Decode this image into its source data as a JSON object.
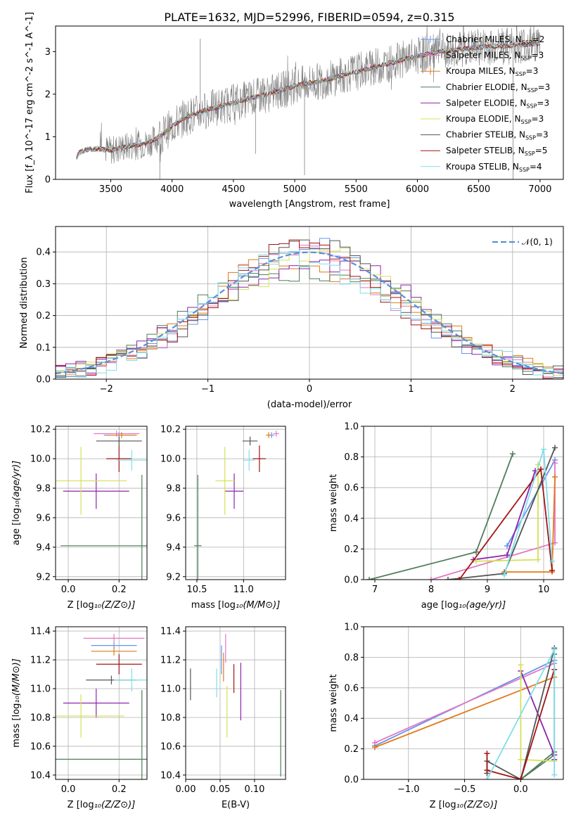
{
  "figure_title": "PLATE=1632, MJD=52996, FIBERID=0594, z=0.315",
  "colors": {
    "Chabrier MILES": "#6495ed",
    "Salpeter MILES": "#e377c2",
    "Kroupa MILES": "#e07b1a",
    "Chabrier ELODIE": "#4e7d5a",
    "Salpeter ELODIE": "#8e24aa",
    "Kroupa ELODIE": "#d4e157",
    "Chabrier STELIB": "#555555",
    "Salpeter STELIB": "#a31515",
    "Kroupa STELIB": "#80deea",
    "data": "#808080",
    "normal": "#5b8fd9",
    "grid": "#b0b0b0"
  },
  "chart_data": [
    {
      "id": "spectrum",
      "type": "line",
      "xlabel": "wavelength [Angstrom, rest frame]",
      "ylabel": "Flux [f_λ 10^-17 erg cm^-2 s^-1 A^-1]",
      "xlim": [
        3050,
        7190
      ],
      "ylim": [
        0,
        3.6
      ],
      "xticks": [
        3500,
        4000,
        4500,
        5000,
        5500,
        6000,
        6500,
        7000
      ],
      "yticks": [
        0,
        1,
        2,
        3
      ],
      "grid": false,
      "legend_position": "upper right",
      "legend": [
        {
          "model": "Chabrier MILES",
          "label": "Chabrier MILES, N",
          "sub": "SSP",
          "suffix": "=2"
        },
        {
          "model": "Salpeter MILES",
          "label": "Salpeter MILES, N",
          "sub": "SSP",
          "suffix": "=3"
        },
        {
          "model": "Kroupa MILES",
          "label": "Kroupa MILES, N",
          "sub": "SSP",
          "suffix": "=3"
        },
        {
          "model": "Chabrier ELODIE",
          "label": "Chabrier ELODIE, N",
          "sub": "SSP",
          "suffix": "=3"
        },
        {
          "model": "Salpeter ELODIE",
          "label": "Salpeter ELODIE, N",
          "sub": "SSP",
          "suffix": "=3"
        },
        {
          "model": "Kroupa ELODIE",
          "label": "Kroupa ELODIE, N",
          "sub": "SSP",
          "suffix": "=3"
        },
        {
          "model": "Chabrier STELIB",
          "label": "Chabrier STELIB, N",
          "sub": "SSP",
          "suffix": "=3"
        },
        {
          "model": "Salpeter STELIB",
          "label": "Salpeter STELIB, N",
          "sub": "SSP",
          "suffix": "=5"
        },
        {
          "model": "Kroupa STELIB",
          "label": "Kroupa STELIB, N",
          "sub": "SSP",
          "suffix": "=4"
        }
      ],
      "continuum": [
        [
          3220,
          0.5
        ],
        [
          3240,
          0.62
        ],
        [
          3300,
          0.7
        ],
        [
          3400,
          0.72
        ],
        [
          3500,
          0.68
        ],
        [
          3600,
          0.75
        ],
        [
          3700,
          0.8
        ],
        [
          3800,
          0.85
        ],
        [
          3900,
          1.0
        ],
        [
          4000,
          1.25
        ],
        [
          4100,
          1.45
        ],
        [
          4200,
          1.55
        ],
        [
          4300,
          1.65
        ],
        [
          4400,
          1.72
        ],
        [
          4500,
          1.8
        ],
        [
          4700,
          1.95
        ],
        [
          4900,
          2.1
        ],
        [
          5000,
          2.2
        ],
        [
          5200,
          2.3
        ],
        [
          5400,
          2.45
        ],
        [
          5600,
          2.6
        ],
        [
          5800,
          2.75
        ],
        [
          6000,
          2.9
        ],
        [
          6200,
          3.0
        ],
        [
          6500,
          3.1
        ],
        [
          6800,
          3.15
        ],
        [
          7000,
          3.2
        ]
      ]
    },
    {
      "id": "residuals",
      "type": "histogram",
      "xlabel": "(data-model)/error",
      "ylabel": "Normed distribution",
      "xlim": [
        -2.5,
        2.5
      ],
      "ylim": [
        0,
        0.48
      ],
      "xticks": [
        -2,
        -1,
        0,
        1,
        2
      ],
      "yticks": [
        0.0,
        0.1,
        0.2,
        0.3,
        0.4
      ],
      "grid": true,
      "legend_position": "upper right",
      "reference_curve": "N(0,1)",
      "bin_width": 0.1,
      "bins_from": -2.5
    },
    {
      "id": "z_vs_age",
      "type": "errorbar",
      "xlabel": "Z [log10(Z/Z⊙)]",
      "ylabel": "age [log10(age/yr)]",
      "xlim": [
        -0.05,
        0.31
      ],
      "ylim": [
        9.18,
        10.22
      ],
      "xticks": [
        0.0,
        0.2
      ],
      "yticks": [
        9.2,
        9.4,
        9.6,
        9.8,
        10.0,
        10.2
      ],
      "grid": true,
      "points": [
        {
          "model": "Chabrier MILES",
          "x": 0.2,
          "xerr": 0.06,
          "y": 10.16,
          "yerr": 0.02
        },
        {
          "model": "Salpeter MILES",
          "x": 0.19,
          "xerr": 0.09,
          "y": 10.17,
          "yerr": 0.02
        },
        {
          "model": "Kroupa MILES",
          "x": 0.21,
          "xerr": 0.06,
          "y": 10.16,
          "yerr": 0.02
        },
        {
          "model": "Chabrier ELODIE",
          "x": 0.29,
          "xerr": 0.32,
          "y": 9.41,
          "yerr": 0.48
        },
        {
          "model": "Salpeter ELODIE",
          "x": 0.11,
          "xerr": 0.13,
          "y": 9.78,
          "yerr": 0.12
        },
        {
          "model": "Kroupa ELODIE",
          "x": 0.05,
          "xerr": 0.18,
          "y": 9.85,
          "yerr": 0.23
        },
        {
          "model": "Chabrier STELIB",
          "x": 0.2,
          "xerr": 0.09,
          "y": 10.12,
          "yerr": 0.03
        },
        {
          "model": "Salpeter STELIB",
          "x": 0.2,
          "xerr": 0.05,
          "y": 10.0,
          "yerr": 0.09
        },
        {
          "model": "Kroupa STELIB",
          "x": 0.25,
          "xerr": 0.06,
          "y": 9.99,
          "yerr": 0.07
        }
      ]
    },
    {
      "id": "mass_vs_age",
      "type": "errorbar",
      "xlabel": "mass [log10(M/M⊙)]",
      "ylabel": "",
      "xlim": [
        10.38,
        11.45
      ],
      "ylim": [
        9.18,
        10.22
      ],
      "xticks": [
        10.5,
        11.0
      ],
      "yticks": [
        9.2,
        9.4,
        9.6,
        9.8,
        10.0,
        10.2
      ],
      "grid": true,
      "points": [
        {
          "model": "Chabrier MILES",
          "x": 11.3,
          "xerr": 0.03,
          "y": 10.16,
          "yerr": 0.02
        },
        {
          "model": "Salpeter MILES",
          "x": 11.35,
          "xerr": 0.03,
          "y": 10.17,
          "yerr": 0.02
        },
        {
          "model": "Kroupa MILES",
          "x": 11.27,
          "xerr": 0.03,
          "y": 10.16,
          "yerr": 0.02
        },
        {
          "model": "Chabrier ELODIE",
          "x": 10.51,
          "xerr": 0.04,
          "y": 9.41,
          "yerr": 0.48
        },
        {
          "model": "Salpeter ELODIE",
          "x": 10.9,
          "xerr": 0.1,
          "y": 9.78,
          "yerr": 0.12
        },
        {
          "model": "Kroupa ELODIE",
          "x": 10.8,
          "xerr": 0.1,
          "y": 9.85,
          "yerr": 0.23
        },
        {
          "model": "Chabrier STELIB",
          "x": 11.07,
          "xerr": 0.08,
          "y": 10.12,
          "yerr": 0.03
        },
        {
          "model": "Salpeter STELIB",
          "x": 11.17,
          "xerr": 0.07,
          "y": 10.0,
          "yerr": 0.09
        },
        {
          "model": "Kroupa STELIB",
          "x": 11.06,
          "xerr": 0.06,
          "y": 9.99,
          "yerr": 0.07
        }
      ]
    },
    {
      "id": "age_weights",
      "type": "line",
      "xlabel": "age [log10(age/yr)]",
      "ylabel": "mass weight",
      "xlim": [
        6.8,
        10.35
      ],
      "ylim": [
        0,
        1.0
      ],
      "xticks": [
        7,
        8,
        9,
        10
      ],
      "yticks": [
        0.0,
        0.2,
        0.4,
        0.6,
        0.8,
        1.0
      ],
      "grid": true,
      "series": [
        {
          "model": "Chabrier MILES",
          "x": [
            9.35,
            10.2
          ],
          "y": [
            0.22,
            0.78
          ]
        },
        {
          "model": "Salpeter MILES",
          "x": [
            8.0,
            10.2,
            10.2
          ],
          "y": [
            0.0,
            0.24,
            0.76
          ]
        },
        {
          "model": "Kroupa MILES",
          "x": [
            9.3,
            10.15,
            10.2
          ],
          "y": [
            0.05,
            0.05,
            0.67
          ]
        },
        {
          "model": "Chabrier ELODIE",
          "x": [
            6.9,
            8.8,
            9.45
          ],
          "y": [
            0.0,
            0.18,
            0.82
          ]
        },
        {
          "model": "Salpeter ELODIE",
          "x": [
            8.75,
            9.35,
            9.85
          ],
          "y": [
            0.13,
            0.16,
            0.71
          ]
        },
        {
          "model": "Kroupa ELODIE",
          "x": [
            8.8,
            9.9,
            9.9
          ],
          "y": [
            0.12,
            0.13,
            0.75
          ]
        },
        {
          "model": "Chabrier STELIB",
          "x": [
            8.3,
            9.3,
            10.2
          ],
          "y": [
            0.0,
            0.04,
            0.86
          ]
        },
        {
          "model": "Salpeter STELIB",
          "x": [
            8.5,
            9.95,
            10.15
          ],
          "y": [
            0.0,
            0.72,
            0.06
          ]
        },
        {
          "model": "Kroupa STELIB",
          "x": [
            9.3,
            10.0,
            10.15
          ],
          "y": [
            0.03,
            0.85,
            0.12
          ]
        }
      ]
    },
    {
      "id": "z_vs_mass",
      "type": "errorbar",
      "xlabel": "Z [log10(Z/Z⊙)]",
      "ylabel": "mass [log10(M/M⊙)]",
      "xlim": [
        -0.05,
        0.31
      ],
      "ylim": [
        10.37,
        11.43
      ],
      "xticks": [
        0.0,
        0.2
      ],
      "yticks": [
        10.4,
        10.6,
        10.8,
        11.0,
        11.2,
        11.4
      ],
      "grid": true,
      "points": [
        {
          "model": "Chabrier MILES",
          "x": 0.18,
          "xerr": 0.09,
          "y": 11.3,
          "yerr": 0.02
        },
        {
          "model": "Salpeter MILES",
          "x": 0.18,
          "xerr": 0.12,
          "y": 11.35,
          "yerr": 0.03
        },
        {
          "model": "Kroupa MILES",
          "x": 0.18,
          "xerr": 0.09,
          "y": 11.26,
          "yerr": 0.03
        },
        {
          "model": "Chabrier ELODIE",
          "x": 0.29,
          "xerr": 0.34,
          "y": 10.51,
          "yerr": 0.48
        },
        {
          "model": "Salpeter ELODIE",
          "x": 0.11,
          "xerr": 0.13,
          "y": 10.9,
          "yerr": 0.1
        },
        {
          "model": "Kroupa ELODIE",
          "x": 0.05,
          "xerr": 0.17,
          "y": 10.81,
          "yerr": 0.15
        },
        {
          "model": "Chabrier STELIB",
          "x": 0.17,
          "xerr": 0.1,
          "y": 11.06,
          "yerr": 0.03
        },
        {
          "model": "Salpeter STELIB",
          "x": 0.2,
          "xerr": 0.09,
          "y": 11.17,
          "yerr": 0.07
        },
        {
          "model": "Kroupa STELIB",
          "x": 0.25,
          "xerr": 0.07,
          "y": 11.06,
          "yerr": 0.08
        }
      ]
    },
    {
      "id": "ebv_vs_mass",
      "type": "errorbar",
      "xlabel": "E(B-V)",
      "ylabel": "",
      "xlim": [
        0.0,
        0.145
      ],
      "ylim": [
        10.37,
        11.43
      ],
      "xticks": [
        0.0,
        0.05,
        0.1
      ],
      "yticks": [
        10.4,
        10.6,
        10.8,
        11.0,
        11.2,
        11.4
      ],
      "grid": true,
      "points": [
        {
          "model": "Chabrier MILES",
          "x": 0.052,
          "xerr": 0,
          "y": 11.2,
          "yerr": 0.1
        },
        {
          "model": "Salpeter MILES",
          "x": 0.058,
          "xerr": 0,
          "y": 11.28,
          "yerr": 0.1
        },
        {
          "model": "Kroupa MILES",
          "x": 0.055,
          "xerr": 0,
          "y": 11.15,
          "yerr": 0.1
        },
        {
          "model": "Chabrier ELODIE",
          "x": 0.138,
          "xerr": 0,
          "y": 10.69,
          "yerr": 0.3
        },
        {
          "model": "Salpeter ELODIE",
          "x": 0.08,
          "xerr": 0,
          "y": 10.98,
          "yerr": 0.2
        },
        {
          "model": "Kroupa ELODIE",
          "x": 0.06,
          "xerr": 0,
          "y": 10.84,
          "yerr": 0.18
        },
        {
          "model": "Chabrier STELIB",
          "x": 0.007,
          "xerr": 0,
          "y": 11.03,
          "yerr": 0.11
        },
        {
          "model": "Salpeter STELIB",
          "x": 0.07,
          "xerr": 0,
          "y": 11.07,
          "yerr": 0.1
        },
        {
          "model": "Kroupa STELIB",
          "x": 0.045,
          "xerr": 0,
          "y": 11.04,
          "yerr": 0.1
        }
      ]
    },
    {
      "id": "z_weights",
      "type": "line",
      "xlabel": "Z [log10(Z/Z⊙)]",
      "ylabel": "mass weight",
      "xlim": [
        -1.4,
        0.38
      ],
      "ylim": [
        0,
        1.0
      ],
      "xticks": [
        -1.0,
        -0.5,
        0.0
      ],
      "tick_labels": [
        "−1.0",
        "−0.5",
        "0.0"
      ],
      "yticks": [
        0.0,
        0.2,
        0.4,
        0.6,
        0.8,
        1.0
      ],
      "grid": true,
      "series": [
        {
          "model": "Chabrier MILES",
          "x": [
            -1.3,
            0.3
          ],
          "y": [
            0.22,
            0.78
          ]
        },
        {
          "model": "Salpeter MILES",
          "x": [
            -1.3,
            0.3
          ],
          "y": [
            0.24,
            0.76
          ]
        },
        {
          "model": "Kroupa MILES",
          "x": [
            -1.3,
            0.3
          ],
          "y": [
            0.21,
            0.67
          ]
        },
        {
          "model": "Chabrier ELODIE",
          "x": [
            0.3,
            0.3,
            0.0,
            0.3
          ],
          "y": [
            0.82,
            0.16,
            0.0,
            0.18
          ]
        },
        {
          "model": "Salpeter ELODIE",
          "x": [
            0.0,
            0.3,
            0.3
          ],
          "y": [
            0.71,
            0.16,
            0.13
          ]
        },
        {
          "model": "Kroupa ELODIE",
          "x": [
            0.0,
            0.0,
            0.3
          ],
          "y": [
            0.75,
            0.13,
            0.12
          ]
        },
        {
          "model": "Chabrier STELIB",
          "x": [
            -0.3,
            -0.3,
            0.0,
            0.3
          ],
          "y": [
            0.04,
            0.12,
            0.0,
            0.86
          ]
        },
        {
          "model": "Salpeter STELIB",
          "x": [
            -0.3,
            -0.3,
            0.0,
            0.3
          ],
          "y": [
            0.17,
            0.06,
            0.0,
            0.72
          ]
        },
        {
          "model": "Kroupa STELIB",
          "x": [
            -0.3,
            0.3,
            0.3
          ],
          "y": [
            0.0,
            0.85,
            0.03
          ]
        }
      ]
    }
  ]
}
